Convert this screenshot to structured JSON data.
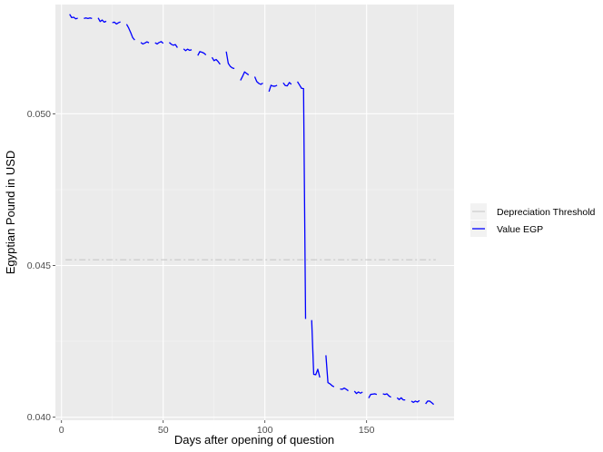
{
  "chart_data": {
    "type": "line",
    "title": "",
    "xlabel": "Days after opening of question",
    "ylabel": "Egyptian Pound in USD",
    "xlim": [
      -3,
      193
    ],
    "ylim": [
      0.0399,
      0.0536
    ],
    "x_ticks": [
      0,
      50,
      100,
      150
    ],
    "x_tick_labels": [
      "0",
      "50",
      "100",
      "150"
    ],
    "y_ticks": [
      0.04,
      0.045,
      0.05
    ],
    "y_tick_labels": [
      "0.040",
      "0.045",
      "0.050"
    ],
    "grid": true,
    "legend_position": "right",
    "series": [
      {
        "name": "Depreciation Threshold",
        "color": "#c8c8c8",
        "style": "dashed",
        "x": [
          2,
          184
        ],
        "y": [
          0.04519,
          0.04519
        ]
      },
      {
        "name": "Value EGP",
        "color": "#0000ff",
        "style": "solid",
        "segments": [
          {
            "x": [
              4,
              5,
              6,
              7,
              8
            ],
            "y": [
              0.05328,
              0.05317,
              0.05318,
              0.05313,
              0.05315
            ]
          },
          {
            "x": [
              11,
              12,
              13,
              14,
              15
            ],
            "y": [
              0.05314,
              0.05316,
              0.05314,
              0.05316,
              0.05314
            ]
          },
          {
            "x": [
              18,
              19,
              20,
              21,
              22
            ],
            "y": [
              0.05316,
              0.05304,
              0.05309,
              0.05302,
              0.05305
            ]
          },
          {
            "x": [
              25,
              26,
              27,
              28,
              29
            ],
            "y": [
              0.053,
              0.05302,
              0.05296,
              0.053,
              0.05303
            ]
          },
          {
            "x": [
              32,
              33,
              34,
              35,
              36
            ],
            "y": [
              0.05295,
              0.05283,
              0.05268,
              0.05251,
              0.05243
            ]
          },
          {
            "x": [
              39,
              40,
              41,
              42,
              43
            ],
            "y": [
              0.05235,
              0.0523,
              0.05233,
              0.05237,
              0.05234
            ]
          },
          {
            "x": [
              46,
              47,
              48,
              49,
              50
            ],
            "y": [
              0.05234,
              0.0523,
              0.05235,
              0.05238,
              0.05232
            ]
          },
          {
            "x": [
              53,
              54,
              55,
              56,
              57
            ],
            "y": [
              0.05235,
              0.05229,
              0.05226,
              0.05228,
              0.05218
            ]
          },
          {
            "x": [
              60,
              61,
              62,
              63,
              64
            ],
            "y": [
              0.05214,
              0.05208,
              0.05213,
              0.05209,
              0.05211
            ]
          },
          {
            "x": [
              67,
              68,
              69,
              70,
              71
            ],
            "y": [
              0.05192,
              0.05205,
              0.05203,
              0.052,
              0.05194
            ]
          },
          {
            "x": [
              74,
              75,
              76,
              77,
              78
            ],
            "y": [
              0.05186,
              0.05175,
              0.05179,
              0.05172,
              0.05163
            ]
          },
          {
            "x": [
              81,
              82,
              83,
              84,
              85
            ],
            "y": [
              0.05205,
              0.05166,
              0.05156,
              0.05151,
              0.05149
            ]
          },
          {
            "x": [
              88,
              89,
              90,
              91,
              92
            ],
            "y": [
              0.0511,
              0.05123,
              0.05138,
              0.05133,
              0.05128
            ]
          },
          {
            "x": [
              95,
              96,
              97,
              98,
              99
            ],
            "y": [
              0.05122,
              0.05106,
              0.051,
              0.05097,
              0.05101
            ]
          },
          {
            "x": [
              102,
              103,
              104,
              105,
              106
            ],
            "y": [
              0.05073,
              0.05094,
              0.05091,
              0.05091,
              0.05094
            ]
          },
          {
            "x": [
              109,
              110,
              111,
              112,
              113
            ],
            "y": [
              0.05102,
              0.05093,
              0.05092,
              0.05103,
              0.05097
            ]
          },
          {
            "x": [
              116,
              117,
              118,
              119,
              120
            ],
            "y": [
              0.05106,
              0.05095,
              0.05084,
              0.05083,
              0.04324
            ]
          },
          {
            "x": [
              123,
              124,
              125,
              126,
              127
            ],
            "y": [
              0.0432,
              0.04141,
              0.0414,
              0.04158,
              0.04131
            ]
          },
          {
            "x": [
              130,
              131,
              132,
              133,
              134
            ],
            "y": [
              0.04204,
              0.04114,
              0.0411,
              0.04104,
              0.041
            ]
          },
          {
            "x": [
              137,
              138,
              139,
              140,
              141
            ],
            "y": [
              0.04093,
              0.04092,
              0.04096,
              0.04092,
              0.04087
            ]
          },
          {
            "x": [
              144,
              145,
              146,
              147,
              148
            ],
            "y": [
              0.04086,
              0.04078,
              0.04083,
              0.04079,
              0.04083
            ]
          },
          {
            "x": [
              151,
              152,
              153,
              154,
              155
            ],
            "y": [
              0.04063,
              0.04075,
              0.04076,
              0.04077,
              0.04075
            ]
          },
          {
            "x": [
              158,
              159,
              160,
              161,
              162
            ],
            "y": [
              0.04077,
              0.04075,
              0.04077,
              0.0407,
              0.04066
            ]
          },
          {
            "x": [
              165,
              166,
              167,
              168,
              169
            ],
            "y": [
              0.04064,
              0.04058,
              0.04064,
              0.04057,
              0.04057
            ]
          },
          {
            "x": [
              172,
              173,
              174,
              175,
              176
            ],
            "y": [
              0.04053,
              0.04049,
              0.04053,
              0.0405,
              0.04055
            ]
          },
          {
            "x": [
              179,
              180,
              181,
              182,
              183
            ],
            "y": [
              0.04044,
              0.04053,
              0.04053,
              0.04048,
              0.04042
            ]
          }
        ]
      }
    ]
  }
}
